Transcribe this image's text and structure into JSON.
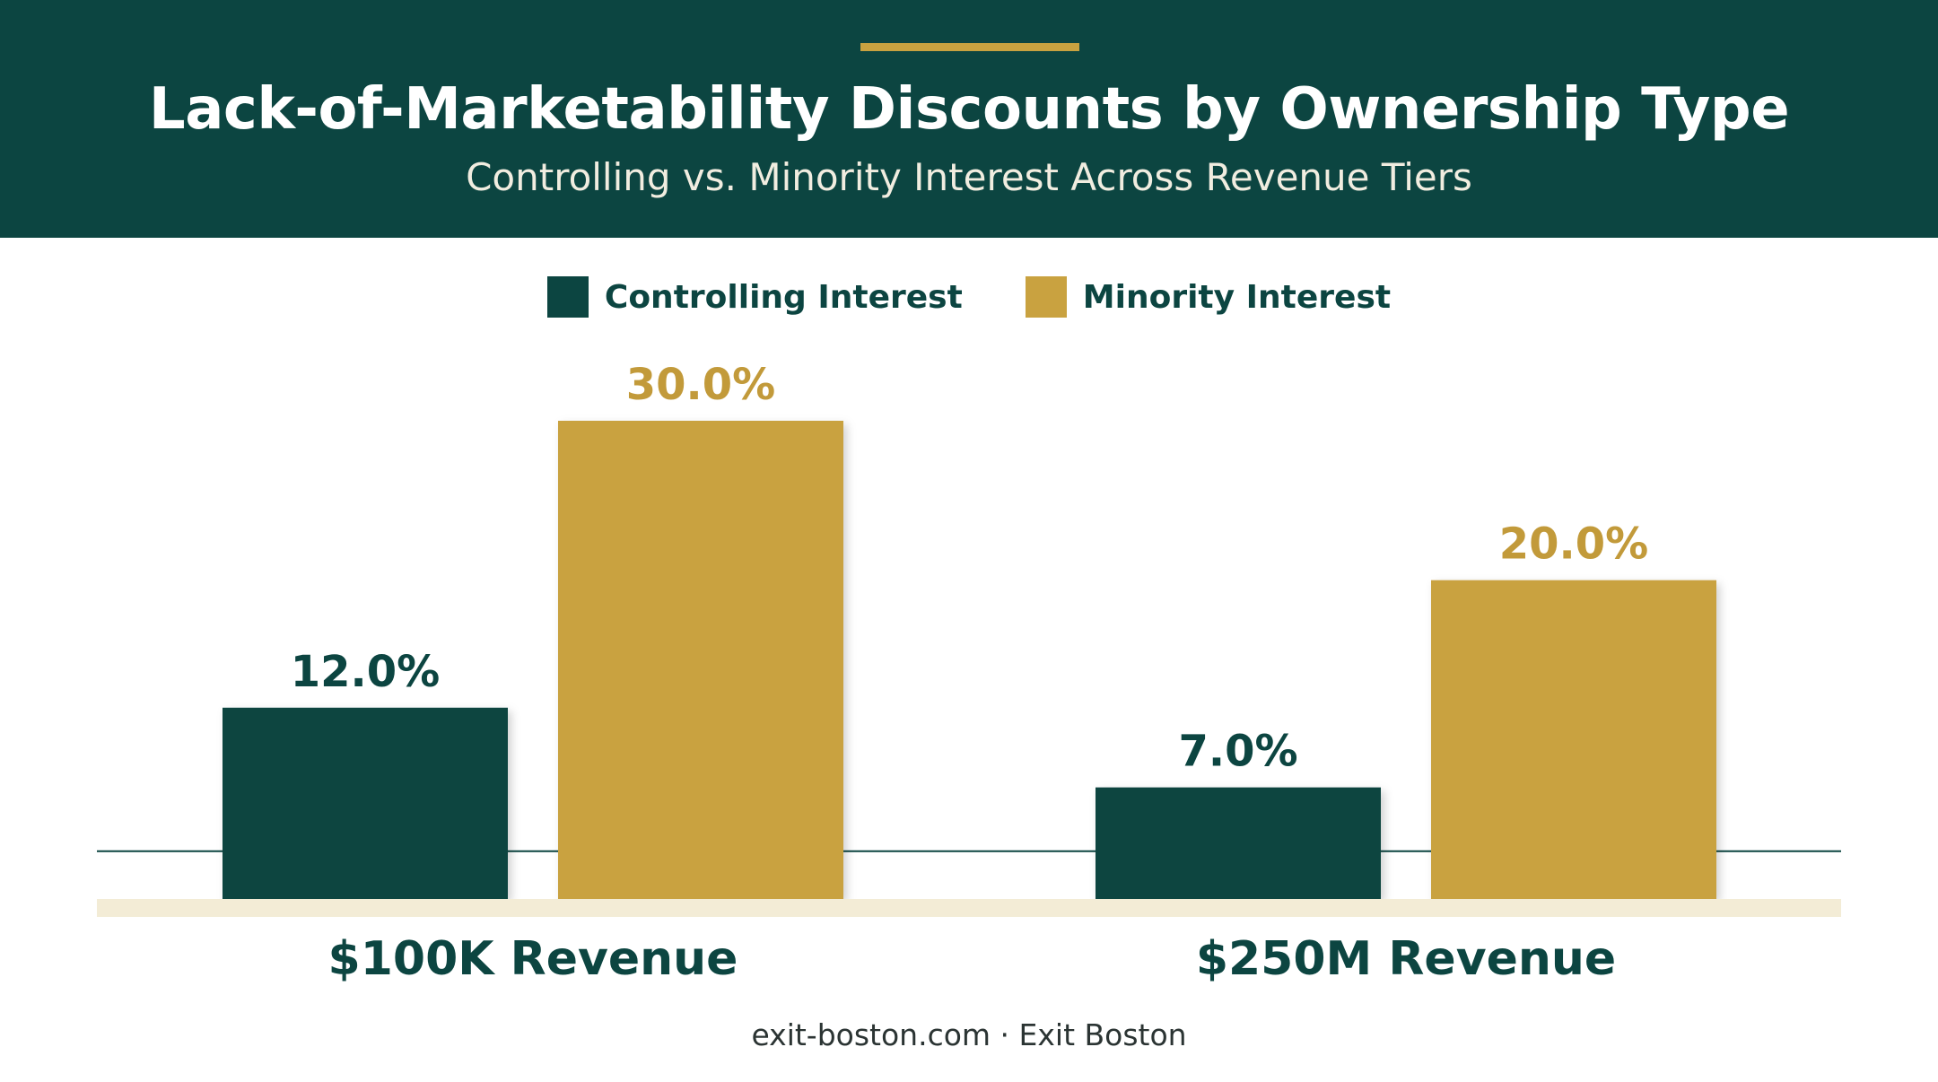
{
  "header": {
    "title": "Lack-of-Marketability Discounts by Ownership Type",
    "subtitle": "Controlling vs. Minority Interest Across Revenue Tiers"
  },
  "colors": {
    "header_bg": "#0c4541",
    "accent": "#c9a240",
    "controlling": "#0c4541",
    "minority": "#c9a240",
    "baseline": "#f3ecd6"
  },
  "chart_data": {
    "type": "bar",
    "categories": [
      "$100K Revenue",
      "$250M Revenue"
    ],
    "series": [
      {
        "name": "Controlling Interest",
        "values": [
          12.0,
          7.0
        ],
        "labels": [
          "12.0%",
          "7.0%"
        ]
      },
      {
        "name": "Minority Interest",
        "values": [
          30.0,
          20.0
        ],
        "labels": [
          "30.0%",
          "20.0%"
        ]
      }
    ],
    "ylim": [
      0,
      30
    ],
    "reference_line": 3.0,
    "legend_position": "top-center",
    "grid": false
  },
  "footer": {
    "text": "exit-boston.com · Exit Boston"
  }
}
